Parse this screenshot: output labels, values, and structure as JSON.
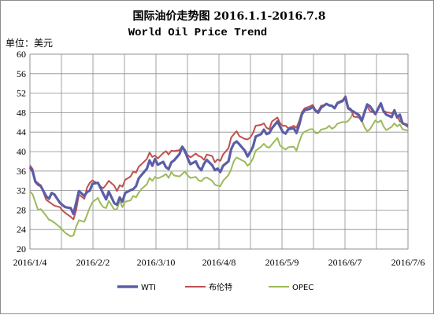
{
  "chart_data": {
    "type": "line",
    "title": "国际油价走势图 2016.1.1-2016.7.8",
    "subtitle": "World Oil Price Trend",
    "ylabel": "单位：美元",
    "xlabel": "",
    "ylim": [
      20,
      60
    ],
    "yticks": [
      "20",
      "24",
      "28",
      "32",
      "36",
      "40",
      "44",
      "48",
      "52",
      "56",
      "60"
    ],
    "x_tick_labels": [
      "2016/1/4",
      "2016/2/2",
      "2016/3/10",
      "2016/4/8",
      "2016/5/9",
      "2016/6/7",
      "2016/7/6"
    ],
    "grid": true,
    "legend_position": "bottom",
    "series": [
      {
        "name": "WTI",
        "color": "#5b5ea6",
        "values": [
          36.8,
          35.9,
          33.8,
          33.2,
          32.9,
          30.8,
          30.3,
          31.5,
          31.2,
          29.5,
          29.0,
          28.6,
          28.4,
          27.2,
          29.5,
          31.9,
          30.9,
          31.7,
          32.0,
          33.4,
          33.6,
          32.5,
          31.3,
          30.2,
          31.8,
          29.4,
          29.1,
          30.6,
          29.7,
          31.5,
          32.1,
          32.3,
          32.9,
          34.5,
          35.2,
          36.5,
          38.2,
          37.1,
          38.5,
          37.3,
          37.9,
          36.8,
          36.4,
          37.8,
          38.2,
          39.5,
          41.0,
          40.2,
          38.6,
          37.4,
          38.0,
          36.8,
          36.2,
          37.5,
          38.3,
          37.2,
          36.2,
          36.5,
          35.8,
          37.1,
          38.0,
          40.5,
          41.7,
          42.1,
          41.5,
          40.2,
          39.0,
          39.9,
          41.0,
          43.1,
          43.6,
          44.5,
          43.6,
          43.8,
          44.8,
          46.2,
          45.1,
          44.0,
          43.7,
          44.6,
          44.8,
          43.8,
          45.5,
          47.7,
          48.5,
          48.8,
          49.2,
          48.4,
          48.0,
          49.0,
          49.8,
          49.5,
          49.4,
          48.9,
          49.9,
          50.4,
          51.2,
          48.9,
          48.5,
          48.2,
          47.5,
          46.3,
          48.0,
          49.7,
          49.3,
          47.7,
          48.8,
          49.9,
          48.3,
          47.6,
          47.1,
          48.5,
          47.0,
          47.6,
          45.8,
          45.4
        ],
        "x_days": [
          0,
          1,
          2,
          3,
          4,
          6,
          7,
          8,
          9,
          11,
          12,
          13,
          15,
          16,
          17,
          18,
          20,
          21,
          22,
          23,
          25,
          26,
          27,
          28,
          29,
          31,
          32,
          33,
          34,
          35,
          37,
          38,
          39,
          40,
          41,
          43,
          44,
          45,
          46,
          47,
          49,
          50,
          51,
          52,
          53,
          55,
          56,
          57,
          58,
          59,
          61,
          62,
          63,
          64,
          65,
          67,
          68,
          69,
          70,
          71,
          73,
          74,
          75,
          76,
          77,
          79,
          80,
          81,
          82,
          83,
          85,
          86,
          87,
          88,
          89,
          91,
          92,
          93,
          94,
          95,
          97,
          98,
          99,
          100,
          101,
          103,
          104,
          105,
          106,
          107,
          109,
          110,
          111,
          112,
          113,
          115,
          116,
          117,
          118,
          119,
          121,
          122,
          123,
          124,
          125,
          127,
          128,
          129,
          130,
          131,
          133,
          134,
          135,
          136,
          137,
          139
        ]
      },
      {
        "name": "布伦特",
        "color": "#c0504d",
        "values": [
          37.2,
          36.4,
          34.0,
          33.5,
          33.1,
          30.1,
          29.7,
          29.3,
          28.9,
          28.6,
          27.9,
          27.4,
          26.6,
          26.1,
          28.0,
          31.2,
          30.3,
          32.6,
          33.6,
          34.1,
          33.4,
          32.8,
          32.5,
          33.2,
          34.0,
          33.0,
          31.9,
          33.1,
          32.8,
          34.2,
          34.9,
          35.9,
          35.7,
          36.9,
          37.4,
          38.5,
          39.8,
          38.9,
          39.2,
          38.6,
          39.7,
          40.1,
          39.4,
          40.2,
          40.1,
          40.3,
          41.1,
          39.7,
          39.3,
          38.8,
          39.6,
          39.1,
          38.9,
          38.3,
          39.4,
          39.1,
          37.8,
          38.4,
          38.1,
          39.4,
          40.7,
          42.9,
          43.6,
          44.2,
          43.2,
          42.6,
          42.5,
          42.9,
          43.8,
          45.3,
          45.5,
          45.8,
          44.9,
          44.6,
          46.2,
          47.0,
          45.8,
          45.3,
          45.3,
          44.8,
          45.3,
          44.9,
          46.3,
          48.1,
          48.9,
          49.3,
          49.6,
          48.5,
          48.3,
          49.4,
          49.7,
          49.6,
          49.3,
          49.1,
          50.1,
          50.6,
          51.4,
          49.1,
          48.8,
          47.2,
          47.0,
          46.2,
          48.4,
          49.3,
          48.3,
          47.9,
          48.6,
          49.7,
          48.4,
          48.1,
          47.9,
          48.3,
          47.4,
          46.2,
          45.9,
          45.0
        ],
        "x_days": [
          0,
          1,
          2,
          3,
          4,
          6,
          7,
          8,
          9,
          11,
          12,
          13,
          15,
          16,
          17,
          18,
          20,
          21,
          22,
          23,
          25,
          26,
          27,
          28,
          29,
          31,
          32,
          33,
          34,
          35,
          37,
          38,
          39,
          40,
          41,
          43,
          44,
          45,
          46,
          47,
          49,
          50,
          51,
          52,
          53,
          55,
          56,
          57,
          58,
          59,
          61,
          62,
          63,
          64,
          65,
          67,
          68,
          69,
          70,
          71,
          73,
          74,
          75,
          76,
          77,
          79,
          80,
          81,
          82,
          83,
          85,
          86,
          87,
          88,
          89,
          91,
          92,
          93,
          94,
          95,
          97,
          98,
          99,
          100,
          101,
          103,
          104,
          105,
          106,
          107,
          109,
          110,
          111,
          112,
          113,
          115,
          116,
          117,
          118,
          119,
          121,
          122,
          123,
          124,
          125,
          127,
          128,
          129,
          130,
          131,
          133,
          134,
          135,
          136,
          137,
          139
        ]
      },
      {
        "name": "OPEC",
        "color": "#9bbb59",
        "values": [
          31.8,
          31.2,
          29.6,
          28.0,
          28.2,
          26.8,
          26.0,
          25.8,
          25.4,
          24.5,
          23.9,
          23.3,
          22.6,
          22.8,
          24.6,
          25.9,
          25.6,
          27.0,
          28.5,
          29.6,
          30.5,
          29.3,
          28.6,
          28.4,
          29.9,
          28.1,
          28.2,
          29.9,
          28.6,
          29.7,
          30.0,
          30.9,
          30.6,
          31.6,
          32.3,
          33.3,
          34.6,
          34.0,
          34.8,
          34.5,
          35.0,
          35.4,
          34.6,
          35.8,
          35.1,
          34.9,
          35.4,
          35.9,
          35.1,
          34.6,
          34.8,
          34.1,
          33.9,
          34.5,
          34.7,
          34.0,
          33.2,
          33.0,
          32.9,
          34.0,
          35.2,
          36.4,
          38.1,
          38.8,
          38.5,
          37.9,
          37.1,
          37.6,
          38.6,
          40.2,
          41.0,
          41.6,
          41.0,
          40.8,
          41.5,
          42.8,
          41.2,
          40.8,
          40.4,
          40.9,
          41.0,
          40.2,
          42.0,
          43.5,
          44.1,
          44.6,
          44.6,
          43.8,
          43.8,
          44.5,
          44.8,
          45.3,
          44.7,
          45.0,
          45.7,
          46.1,
          46.0,
          46.3,
          47.0,
          48.3,
          47.1,
          46.4,
          45.0,
          44.2,
          44.6,
          46.4,
          46.0,
          46.4,
          45.2,
          44.4,
          45.1,
          45.8,
          45.2,
          45.6,
          44.6,
          44.3
        ],
        "x_days": [
          0,
          1,
          2,
          3,
          4,
          6,
          7,
          8,
          9,
          11,
          12,
          13,
          15,
          16,
          17,
          18,
          20,
          21,
          22,
          23,
          25,
          26,
          27,
          28,
          29,
          31,
          32,
          33,
          34,
          35,
          37,
          38,
          39,
          40,
          41,
          43,
          44,
          45,
          46,
          47,
          49,
          50,
          51,
          52,
          53,
          55,
          56,
          57,
          58,
          59,
          61,
          62,
          63,
          64,
          65,
          67,
          68,
          69,
          70,
          71,
          73,
          74,
          75,
          76,
          77,
          79,
          80,
          81,
          82,
          83,
          85,
          86,
          87,
          88,
          89,
          91,
          92,
          93,
          94,
          95,
          97,
          98,
          99,
          100,
          101,
          103,
          104,
          105,
          106,
          107,
          109,
          110,
          111,
          112,
          113,
          115,
          116,
          117,
          118,
          119,
          121,
          122,
          123,
          124,
          125,
          127,
          128,
          129,
          130,
          131,
          133,
          134,
          135,
          136,
          137,
          139
        ]
      }
    ]
  }
}
